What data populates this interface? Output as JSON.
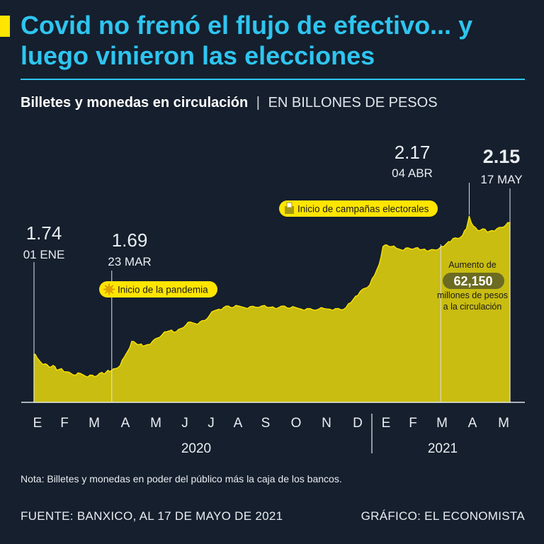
{
  "header": {
    "title": "Covid no frenó el flujo de efectivo... y luego vinieron las elecciones",
    "subtitle_main": "Billetes y monedas en circulación",
    "subtitle_sep": "|",
    "subtitle_unit": "EN BILLONES DE PESOS"
  },
  "footer": {
    "note": "Nota: Billetes y monedas en poder del público más la caja de los bancos.",
    "source": "FUENTE: BANXICO, AL 17 DE MAYO DE 2021",
    "credit": "GRÁFICO: EL ECONOMISTA"
  },
  "colors": {
    "background": "#151f2d",
    "title": "#2ec5f0",
    "area": "#c9bd12",
    "highlight": "#ffe500",
    "text": "#e9edf2",
    "badge": "#6b6b22"
  },
  "chart_data": {
    "type": "area",
    "unit": "billones de pesos",
    "x_range": [
      "2020-01-01",
      "2021-05-17"
    ],
    "month_ticks": [
      "E",
      "F",
      "M",
      "A",
      "M",
      "J",
      "J",
      "A",
      "S",
      "O",
      "N",
      "D",
      "E",
      "F",
      "M",
      "A",
      "M"
    ],
    "year_labels": [
      "2020",
      "2021"
    ],
    "series": [
      {
        "values": [
          [
            "2020-01-01",
            1.74
          ],
          [
            "2020-01-04",
            1.73
          ],
          [
            "2020-01-08",
            1.715
          ],
          [
            "2020-01-13",
            1.71
          ],
          [
            "2020-01-17",
            1.7
          ],
          [
            "2020-01-21",
            1.705
          ],
          [
            "2020-01-25",
            1.69
          ],
          [
            "2020-01-30",
            1.695
          ],
          [
            "2020-02-04",
            1.685
          ],
          [
            "2020-02-09",
            1.68
          ],
          [
            "2020-02-14",
            1.675
          ],
          [
            "2020-02-19",
            1.68
          ],
          [
            "2020-02-24",
            1.672
          ],
          [
            "2020-02-29",
            1.675
          ],
          [
            "2020-03-05",
            1.67
          ],
          [
            "2020-03-10",
            1.68
          ],
          [
            "2020-03-15",
            1.678
          ],
          [
            "2020-03-19",
            1.69
          ],
          [
            "2020-03-23",
            1.69
          ],
          [
            "2020-03-27",
            1.695
          ],
          [
            "2020-04-01",
            1.705
          ],
          [
            "2020-04-05",
            1.73
          ],
          [
            "2020-04-09",
            1.75
          ],
          [
            "2020-04-13",
            1.78
          ],
          [
            "2020-04-17",
            1.775
          ],
          [
            "2020-04-21",
            1.77
          ],
          [
            "2020-04-25",
            1.765
          ],
          [
            "2020-04-30",
            1.77
          ],
          [
            "2020-05-05",
            1.78
          ],
          [
            "2020-05-10",
            1.79
          ],
          [
            "2020-05-15",
            1.8
          ],
          [
            "2020-05-20",
            1.81
          ],
          [
            "2020-05-25",
            1.815
          ],
          [
            "2020-05-30",
            1.81
          ],
          [
            "2020-06-04",
            1.82
          ],
          [
            "2020-06-09",
            1.83
          ],
          [
            "2020-06-14",
            1.84
          ],
          [
            "2020-06-19",
            1.835
          ],
          [
            "2020-06-24",
            1.84
          ],
          [
            "2020-06-29",
            1.845
          ],
          [
            "2020-07-04",
            1.86
          ],
          [
            "2020-07-09",
            1.875
          ],
          [
            "2020-07-14",
            1.88
          ],
          [
            "2020-07-19",
            1.885
          ],
          [
            "2020-07-24",
            1.89
          ],
          [
            "2020-07-29",
            1.885
          ],
          [
            "2020-08-04",
            1.89
          ],
          [
            "2020-08-10",
            1.885
          ],
          [
            "2020-08-16",
            1.888
          ],
          [
            "2020-08-22",
            1.886
          ],
          [
            "2020-08-28",
            1.89
          ],
          [
            "2020-09-03",
            1.885
          ],
          [
            "2020-09-09",
            1.887
          ],
          [
            "2020-09-15",
            1.885
          ],
          [
            "2020-09-21",
            1.89
          ],
          [
            "2020-09-27",
            1.883
          ],
          [
            "2020-10-03",
            1.885
          ],
          [
            "2020-10-09",
            1.88
          ],
          [
            "2020-10-15",
            1.882
          ],
          [
            "2020-10-21",
            1.878
          ],
          [
            "2020-10-27",
            1.88
          ],
          [
            "2020-11-02",
            1.882
          ],
          [
            "2020-11-08",
            1.88
          ],
          [
            "2020-11-14",
            1.882
          ],
          [
            "2020-11-20",
            1.878
          ],
          [
            "2020-11-25",
            1.885
          ],
          [
            "2020-11-30",
            1.9
          ],
          [
            "2020-12-05",
            1.92
          ],
          [
            "2020-12-10",
            1.935
          ],
          [
            "2020-12-15",
            1.945
          ],
          [
            "2020-12-20",
            1.955
          ],
          [
            "2020-12-25",
            1.985
          ],
          [
            "2020-12-30",
            2.02
          ],
          [
            "2021-01-03",
            2.075
          ],
          [
            "2021-01-07",
            2.08
          ],
          [
            "2021-01-12",
            2.075
          ],
          [
            "2021-01-17",
            2.07
          ],
          [
            "2021-01-22",
            2.065
          ],
          [
            "2021-01-27",
            2.07
          ],
          [
            "2021-02-01",
            2.068
          ],
          [
            "2021-02-06",
            2.07
          ],
          [
            "2021-02-11",
            2.065
          ],
          [
            "2021-02-16",
            2.067
          ],
          [
            "2021-02-21",
            2.063
          ],
          [
            "2021-02-26",
            2.065
          ],
          [
            "2021-03-03",
            2.068
          ],
          [
            "2021-03-08",
            2.075
          ],
          [
            "2021-03-13",
            2.09
          ],
          [
            "2021-03-18",
            2.1
          ],
          [
            "2021-03-23",
            2.1
          ],
          [
            "2021-03-28",
            2.11
          ],
          [
            "2021-04-01",
            2.13
          ],
          [
            "2021-04-04",
            2.17
          ],
          [
            "2021-04-08",
            2.14
          ],
          [
            "2021-04-13",
            2.125
          ],
          [
            "2021-04-18",
            2.13
          ],
          [
            "2021-04-23",
            2.12
          ],
          [
            "2021-04-28",
            2.125
          ],
          [
            "2021-05-03",
            2.13
          ],
          [
            "2021-05-08",
            2.135
          ],
          [
            "2021-05-12",
            2.14
          ],
          [
            "2021-05-17",
            2.15
          ]
        ]
      }
    ],
    "annotations": [
      {
        "date": "2020-01-01",
        "value_label": "1.74",
        "date_label": "01 ENE",
        "bold": false
      },
      {
        "date": "2020-03-23",
        "value_label": "1.69",
        "date_label": "23 MAR",
        "bold": false
      },
      {
        "date": "2021-04-04",
        "value_label": "2.17",
        "date_label": "04 ABR",
        "bold": false
      },
      {
        "date": "2021-05-17",
        "value_label": "2.15",
        "date_label": "17 MAY",
        "bold": true
      }
    ],
    "events": [
      {
        "date": "2020-03-23",
        "label": "Inicio de la pandemia",
        "icon": "virus-icon"
      },
      {
        "date": "2021-04-04",
        "label": "Inicio de campañas electorales",
        "icon": "ballot-box-icon"
      }
    ],
    "callout": {
      "line_1": "Aumento de",
      "value": "62,150",
      "line_2": "millones de pesos",
      "line_3": "a la circulación"
    }
  }
}
